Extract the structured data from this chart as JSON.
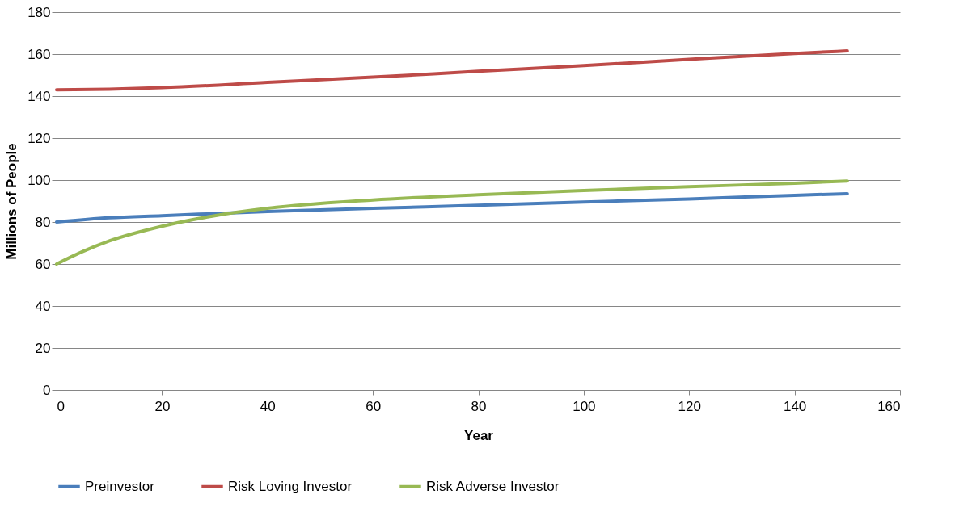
{
  "chart_data": {
    "type": "line",
    "xlabel": "Year",
    "ylabel": "Millions of People",
    "xlim": [
      0,
      160
    ],
    "xticks": [
      0,
      20,
      40,
      60,
      80,
      100,
      120,
      140,
      160
    ],
    "ylim": [
      0,
      180
    ],
    "yticks": [
      0,
      20,
      40,
      60,
      80,
      100,
      120,
      140,
      160,
      180
    ],
    "grid": "y",
    "legend": "bottom",
    "marker": "none",
    "line_style": "solid",
    "series": [
      {
        "name": "Preinvestor",
        "color": "#4a7ebb",
        "x": [
          0,
          10,
          20,
          40,
          60,
          80,
          100,
          120,
          140,
          150
        ],
        "values": [
          80,
          82,
          83,
          85,
          86.5,
          88,
          89.5,
          91,
          92.7,
          93.5
        ]
      },
      {
        "name": "Risk Loving Investor",
        "color": "#be4b48",
        "x": [
          0,
          10,
          20,
          40,
          60,
          80,
          100,
          120,
          140,
          150
        ],
        "values": [
          143,
          143.3,
          144,
          146.5,
          149,
          151.8,
          154.5,
          157.5,
          160.3,
          161.5
        ]
      },
      {
        "name": "Risk Adverse Investor",
        "color": "#98b954",
        "x": [
          0,
          5,
          10,
          20,
          30,
          40,
          60,
          80,
          100,
          120,
          140,
          150
        ],
        "values": [
          60,
          66,
          71,
          78,
          83,
          86.5,
          90.5,
          93,
          95,
          96.8,
          98.5,
          99.5
        ]
      }
    ]
  }
}
